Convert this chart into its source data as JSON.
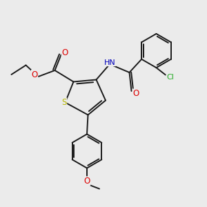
{
  "bg_color": "#ebebeb",
  "bond_color": "#1a1a1a",
  "atom_colors": {
    "S": "#b8b800",
    "O": "#dd0000",
    "N": "#0000bb",
    "Cl": "#22aa22",
    "C": "#1a1a1a",
    "H": "#555555"
  },
  "lw": 1.4,
  "fs": 7.5,
  "dbs": 0.09
}
